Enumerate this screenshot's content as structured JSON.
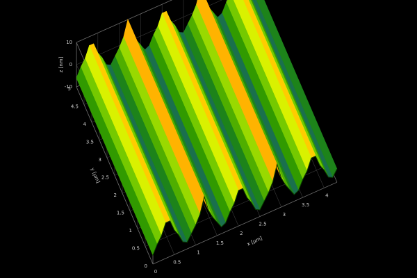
{
  "chart_data": {
    "type": "surface",
    "x_label": "x [µm]",
    "y_label": "y [µm]",
    "z_label": "z [nm]",
    "x": [
      0,
      0.1,
      0.2,
      0.3,
      0.4,
      0.5,
      0.6,
      0.7,
      0.8,
      0.9,
      1.0,
      1.1,
      1.2,
      1.3,
      1.4,
      1.5,
      1.6,
      1.7,
      1.8,
      1.9,
      2.0,
      2.1,
      2.2,
      2.3,
      2.4,
      2.5,
      2.6,
      2.7,
      2.8,
      2.9,
      3.0,
      3.1,
      3.2,
      3.3,
      3.4,
      3.5,
      3.6,
      3.7,
      3.8,
      3.9,
      4.0,
      4.1,
      4.2,
      4.3
    ],
    "z": [
      -6,
      -2,
      1,
      6,
      6,
      1,
      -2,
      -6,
      -7,
      -4,
      -1,
      3,
      10,
      3,
      -1,
      -4,
      -7,
      -6,
      -2,
      1,
      6,
      6,
      1,
      -2,
      -6,
      -7,
      -4,
      -1,
      3,
      10,
      3,
      -1,
      -4,
      -7,
      -6,
      -2,
      1,
      6,
      6,
      1,
      -2,
      -6,
      -7,
      -4
    ],
    "xlim": [
      0,
      4.3
    ],
    "ylim": [
      0,
      5
    ],
    "zlim": [
      -10,
      10
    ],
    "xticks": [
      0,
      0.5,
      1,
      1.5,
      2,
      2.5,
      3,
      3.5,
      4
    ],
    "yticks": [
      0,
      0.5,
      1,
      1.5,
      2,
      2.5,
      3,
      3.5,
      4,
      4.5,
      5
    ],
    "zticks": [
      -10,
      0,
      10
    ],
    "colormap": [
      "#1030ff",
      "#1e8c00",
      "#7fd000",
      "#ffff00",
      "#ff0000"
    ],
    "grid": true
  }
}
